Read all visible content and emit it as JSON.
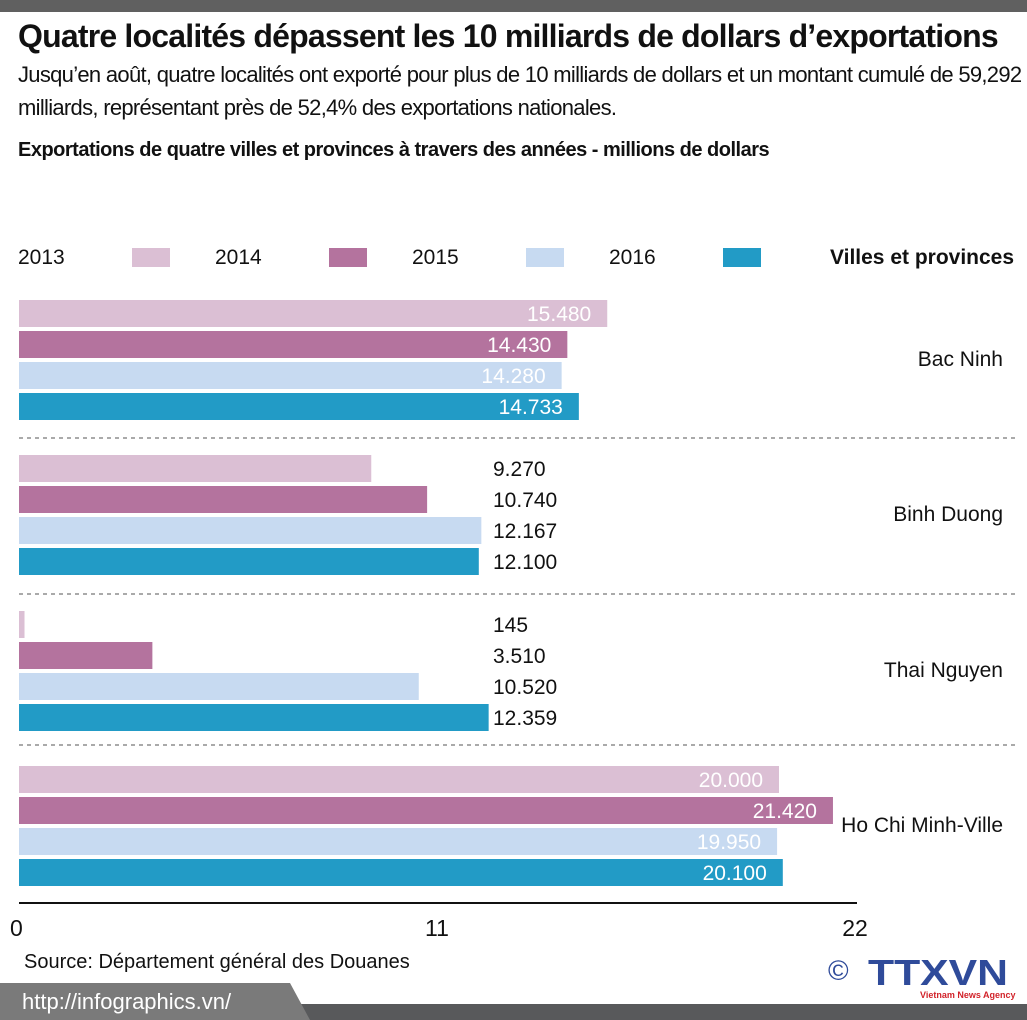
{
  "header": {
    "title": "Quatre localités dépassent les 10 milliards de dollars d’exportations",
    "subtitle": "Jusqu’en août, quatre localités ont exporté pour plus de 10 milliards de dollars et un montant cumulé de 59,292 milliards, représentant près de 52,4% des exportations nationales."
  },
  "chart_data": {
    "type": "bar",
    "orientation": "horizontal",
    "title": "Exportations de quatre villes et provinces à travers des années - millions de dollars",
    "legend_header": "Villes et provinces",
    "categories": [
      "Bac Ninh",
      "Binh Duong",
      "Thai Nguyen",
      "Ho Chi Minh-Ville"
    ],
    "series": [
      {
        "name": "2013",
        "color": "#dbbfd4",
        "values": [
          15480,
          9270,
          145,
          20000
        ],
        "labels": [
          "15.480",
          "9.270",
          "145",
          "20.000"
        ]
      },
      {
        "name": "2014",
        "color": "#b4739e",
        "values": [
          14430,
          10740,
          3510,
          21420
        ],
        "labels": [
          "14.430",
          "10.740",
          "3.510",
          "21.420"
        ]
      },
      {
        "name": "2015",
        "color": "#c7daf1",
        "values": [
          14280,
          12167,
          10520,
          19950
        ],
        "labels": [
          "14.280",
          "12.167",
          "10.520",
          "19.950"
        ]
      },
      {
        "name": "2016",
        "color": "#229bc6",
        "values": [
          14733,
          12100,
          12359,
          20100
        ],
        "labels": [
          "14.733",
          "12.100",
          "12.359",
          "20.100"
        ]
      }
    ],
    "xlim": [
      0,
      22000
    ],
    "xticks": [
      "0",
      "11",
      "22"
    ],
    "legend_position": "top",
    "grid": false
  },
  "footer": {
    "source": "Source:  Département général des Douanes",
    "url": "http://infographics.vn/",
    "logo_text": "TTXVN",
    "logo_sub": "Vietnam News Agency",
    "copyright": "©"
  }
}
